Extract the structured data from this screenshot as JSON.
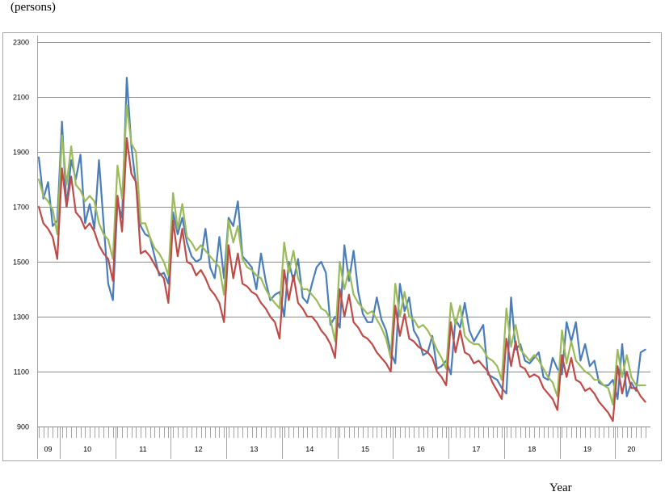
{
  "unit_label": "(persons)",
  "x_axis_title": "Year",
  "chart_data": {
    "type": "line",
    "title": "",
    "xlabel": "Year",
    "ylabel": "(persons)",
    "ylim": [
      900,
      2300
    ],
    "yticks": [
      900,
      1100,
      1300,
      1500,
      1700,
      1900,
      2100,
      2300
    ],
    "ytick_labels": [
      "900",
      "1100",
      "1300",
      "1500",
      "1700",
      "1900",
      "2100",
      "2300"
    ],
    "grid": "horizontal",
    "legend": "none",
    "year_labels": [
      "09",
      "10",
      "11",
      "12",
      "13",
      "14",
      "15",
      "16",
      "17",
      "18",
      "19",
      "20"
    ],
    "months_per_year": [
      5,
      12,
      12,
      12,
      12,
      12,
      12,
      12,
      12,
      12,
      12,
      7
    ],
    "series": [
      {
        "color": "#4a7ebb",
        "values": [
          1880,
          1730,
          1790,
          1630,
          1650,
          2010,
          1700,
          1870,
          1800,
          1890,
          1640,
          1710,
          1620,
          1870,
          1640,
          1420,
          1360,
          1720,
          1660,
          2170,
          1920,
          1780,
          1630,
          1600,
          1590,
          1520,
          1450,
          1460,
          1420,
          1680,
          1600,
          1660,
          1570,
          1520,
          1500,
          1510,
          1620,
          1480,
          1440,
          1590,
          1440,
          1660,
          1630,
          1720,
          1520,
          1500,
          1480,
          1400,
          1530,
          1430,
          1360,
          1380,
          1390,
          1300,
          1500,
          1430,
          1510,
          1370,
          1350,
          1420,
          1480,
          1500,
          1460,
          1270,
          1300,
          1260,
          1560,
          1430,
          1540,
          1390,
          1310,
          1280,
          1280,
          1370,
          1290,
          1250,
          1170,
          1130,
          1420,
          1320,
          1370,
          1250,
          1220,
          1160,
          1170,
          1230,
          1110,
          1120,
          1140,
          1090,
          1290,
          1260,
          1350,
          1250,
          1210,
          1240,
          1270,
          1090,
          1080,
          1070,
          1040,
          1020,
          1370,
          1180,
          1200,
          1140,
          1130,
          1150,
          1170,
          1080,
          1070,
          1150,
          1110,
          1090,
          1280,
          1210,
          1280,
          1140,
          1200,
          1120,
          1140,
          1060,
          1050,
          1050,
          1070,
          1000,
          1200,
          1010,
          1060,
          1030,
          1170,
          1180
        ]
      },
      {
        "color": "#9bbb59",
        "values": [
          1800,
          1740,
          1720,
          1690,
          1600,
          1960,
          1780,
          1920,
          1780,
          1760,
          1720,
          1740,
          1720,
          1640,
          1600,
          1580,
          1510,
          1850,
          1730,
          2070,
          1930,
          1900,
          1640,
          1640,
          1590,
          1550,
          1530,
          1500,
          1450,
          1750,
          1620,
          1710,
          1590,
          1570,
          1540,
          1560,
          1540,
          1520,
          1500,
          1480,
          1380,
          1650,
          1570,
          1630,
          1510,
          1480,
          1470,
          1450,
          1440,
          1400,
          1370,
          1350,
          1330,
          1570,
          1460,
          1540,
          1440,
          1400,
          1400,
          1380,
          1360,
          1330,
          1320,
          1290,
          1210,
          1500,
          1400,
          1470,
          1380,
          1350,
          1330,
          1310,
          1320,
          1290,
          1260,
          1220,
          1150,
          1420,
          1300,
          1390,
          1300,
          1290,
          1260,
          1270,
          1250,
          1220,
          1180,
          1150,
          1110,
          1350,
          1270,
          1340,
          1230,
          1210,
          1200,
          1200,
          1180,
          1150,
          1140,
          1120,
          1070,
          1330,
          1190,
          1270,
          1180,
          1160,
          1140,
          1160,
          1140,
          1110,
          1080,
          1060,
          1010,
          1250,
          1130,
          1210,
          1140,
          1120,
          1100,
          1090,
          1070,
          1070,
          1050,
          1040,
          980,
          1180,
          1080,
          1160,
          1080,
          1050,
          1050,
          1050
        ]
      },
      {
        "color": "#be4b48",
        "values": [
          1700,
          1640,
          1620,
          1590,
          1510,
          1840,
          1700,
          1810,
          1680,
          1660,
          1620,
          1640,
          1610,
          1560,
          1530,
          1510,
          1430,
          1740,
          1610,
          1950,
          1820,
          1790,
          1530,
          1540,
          1520,
          1490,
          1460,
          1440,
          1350,
          1650,
          1520,
          1620,
          1500,
          1490,
          1450,
          1470,
          1440,
          1400,
          1380,
          1350,
          1280,
          1560,
          1440,
          1530,
          1420,
          1410,
          1390,
          1380,
          1350,
          1330,
          1300,
          1280,
          1220,
          1470,
          1360,
          1450,
          1350,
          1330,
          1300,
          1300,
          1280,
          1250,
          1230,
          1200,
          1150,
          1400,
          1300,
          1380,
          1280,
          1260,
          1230,
          1220,
          1200,
          1170,
          1150,
          1130,
          1100,
          1340,
          1230,
          1310,
          1220,
          1210,
          1190,
          1180,
          1170,
          1150,
          1100,
          1080,
          1050,
          1280,
          1170,
          1250,
          1170,
          1160,
          1130,
          1140,
          1120,
          1100,
          1060,
          1030,
          1000,
          1220,
          1120,
          1210,
          1120,
          1110,
          1080,
          1090,
          1080,
          1040,
          1020,
          1000,
          960,
          1160,
          1080,
          1150,
          1070,
          1060,
          1030,
          1040,
          1020,
          990,
          970,
          950,
          920,
          1120,
          1020,
          1100,
          1040,
          1040,
          1010,
          990
        ]
      }
    ]
  }
}
